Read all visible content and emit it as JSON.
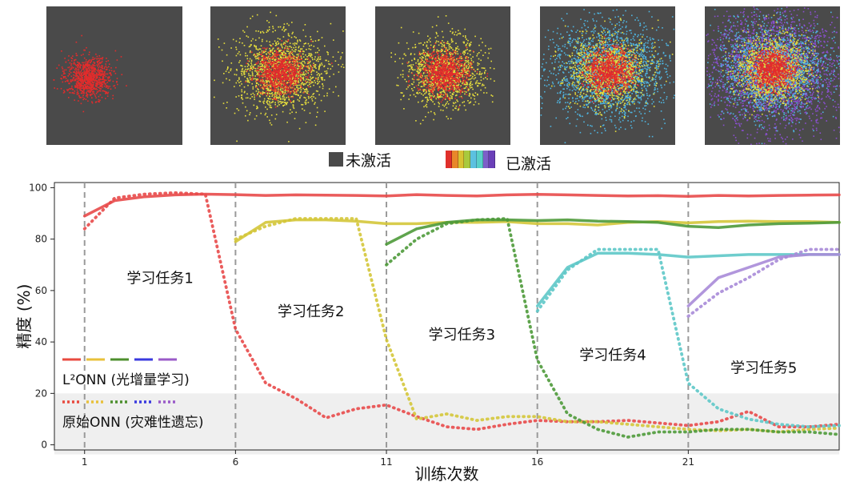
{
  "legend_top": {
    "inactive_label": "未激活",
    "active_label": "已激活",
    "inactive_color": "#4a4a4a",
    "active_colors": [
      "#e0302b",
      "#e8872a",
      "#d8c232",
      "#a9c93d",
      "#5cc1e0",
      "#58d0c8",
      "#7d5fc8",
      "#6a3fb8"
    ]
  },
  "cluster_colors": [
    "#e32c2c",
    "#e8df3c",
    "#4fb5e0",
    "#8a4fd0"
  ],
  "chart_data": {
    "type": "line",
    "xlabel": "训练次数",
    "ylabel": "精度 (%)",
    "xticks": [
      1,
      6,
      11,
      16,
      21
    ],
    "yticks": [
      0,
      20,
      40,
      60,
      80,
      100
    ],
    "xlim": [
      0,
      26
    ],
    "ylim": [
      -2,
      102
    ],
    "task_boundaries": [
      1,
      6,
      11,
      16,
      21
    ],
    "shaded_band": [
      0,
      20
    ],
    "task_labels": [
      {
        "text": "学习任务1",
        "x": 3.5,
        "y": 63
      },
      {
        "text": "学习任务2",
        "x": 8.5,
        "y": 50
      },
      {
        "text": "学习任务3",
        "x": 13.5,
        "y": 41
      },
      {
        "text": "学习任务4",
        "x": 18.5,
        "y": 33
      },
      {
        "text": "学习任务5",
        "x": 23.5,
        "y": 28
      }
    ],
    "legend": {
      "l2onn_label": "L²ONN (光增量学习)",
      "onn_label": "原始ONN (灾难性遗忘)",
      "colors": [
        "#e84a3f",
        "#e8c13a",
        "#4d8f2e",
        "#3a3adf",
        "#9a5ac8"
      ]
    },
    "series": [
      {
        "name": "L²ONN",
        "style": "solid",
        "color": "#e84a4a",
        "x": [
          1,
          2,
          3,
          4,
          5,
          6,
          7,
          8,
          9,
          10,
          11,
          12,
          13,
          14,
          15,
          16,
          17,
          18,
          19,
          20,
          21,
          22,
          23,
          24,
          25,
          26
        ],
        "y": [
          89,
          95,
          96.5,
          97.2,
          97.5,
          97.3,
          97,
          97.2,
          97.1,
          97,
          96.8,
          97.3,
          97,
          96.8,
          97.2,
          97.4,
          97.2,
          97,
          96.8,
          96.9,
          96.6,
          97,
          96.8,
          97,
          97.1,
          97.2
        ]
      },
      {
        "name": "L²ONN",
        "style": "solid",
        "color": "#d4c63a",
        "x": [
          6,
          7,
          8,
          9,
          10,
          11,
          12,
          13,
          14,
          15,
          16,
          17,
          18,
          19,
          20,
          21,
          22,
          23,
          24,
          25,
          26
        ],
        "y": [
          79,
          86.5,
          87.5,
          87.5,
          87,
          86,
          86,
          86.5,
          86.5,
          86.8,
          86,
          86,
          85.5,
          86.5,
          86.8,
          86.3,
          86.8,
          87,
          86.8,
          86.8,
          86.5
        ]
      },
      {
        "name": "L²ONN",
        "style": "solid",
        "color": "#4e9a3a",
        "x": [
          11,
          12,
          13,
          14,
          15,
          16,
          17,
          18,
          19,
          20,
          21,
          22,
          23,
          24,
          25,
          26
        ],
        "y": [
          78,
          84,
          86.5,
          87.5,
          87.5,
          87.2,
          87.5,
          87,
          86.8,
          86.5,
          85,
          84.5,
          85.5,
          86,
          86.2,
          86.5
        ]
      },
      {
        "name": "L²ONN",
        "style": "solid",
        "color": "#5ec8c8",
        "x": [
          16,
          17,
          18,
          19,
          20,
          21,
          22,
          23,
          24,
          25,
          26
        ],
        "y": [
          54,
          69,
          74.5,
          74.5,
          74,
          73,
          73.5,
          74,
          74,
          74,
          74
        ]
      },
      {
        "name": "L²ONN",
        "style": "solid",
        "color": "#a98bd8",
        "x": [
          21,
          22,
          23,
          24,
          25,
          26
        ],
        "y": [
          54,
          65,
          69,
          73,
          74,
          74
        ]
      },
      {
        "name": "原始ONN",
        "style": "dotted",
        "color": "#e84a4a",
        "x": [
          1,
          2,
          3,
          4,
          5,
          6,
          7,
          8,
          9,
          10,
          11,
          12,
          13,
          14,
          15,
          16,
          17,
          18,
          19,
          20,
          21,
          22,
          23,
          24,
          25,
          26
        ],
        "y": [
          84,
          96,
          97.5,
          98,
          97.5,
          45,
          24,
          18,
          10.5,
          14,
          15.5,
          11,
          7,
          6,
          8,
          9.5,
          9,
          9,
          9.5,
          8.5,
          7.5,
          9,
          13,
          7,
          7,
          8
        ]
      },
      {
        "name": "原始ONN",
        "style": "dotted",
        "color": "#d4c63a",
        "x": [
          6,
          7,
          8,
          9,
          10,
          11,
          12,
          13,
          14,
          15,
          16,
          17,
          18,
          19,
          20,
          21,
          22,
          23,
          24,
          25,
          26
        ],
        "y": [
          80,
          85,
          88,
          88,
          88,
          41,
          10,
          12,
          9.5,
          11,
          11,
          9,
          9,
          8,
          7,
          6,
          5.5,
          6,
          5,
          6,
          6.5
        ]
      },
      {
        "name": "原始ONN",
        "style": "dotted",
        "color": "#4e9a3a",
        "x": [
          11,
          12,
          13,
          14,
          15,
          16,
          17,
          18,
          19,
          20,
          21,
          22,
          23,
          24,
          25,
          26
        ],
        "y": [
          70,
          80,
          86,
          87.5,
          88,
          33,
          12,
          6,
          3,
          5,
          5,
          6,
          6,
          5,
          5,
          4
        ]
      },
      {
        "name": "原始ONN",
        "style": "dotted",
        "color": "#5ec8c8",
        "x": [
          16,
          17,
          18,
          19,
          20,
          21,
          22,
          23,
          24,
          25,
          26
        ],
        "y": [
          52,
          68,
          76,
          76,
          76,
          24,
          14,
          10,
          8,
          7,
          7.5
        ]
      },
      {
        "name": "原始ONN",
        "style": "dotted",
        "color": "#a98bd8",
        "x": [
          21,
          22,
          23,
          24,
          25,
          26
        ],
        "y": [
          50,
          59,
          65,
          72,
          76,
          76
        ]
      }
    ]
  }
}
